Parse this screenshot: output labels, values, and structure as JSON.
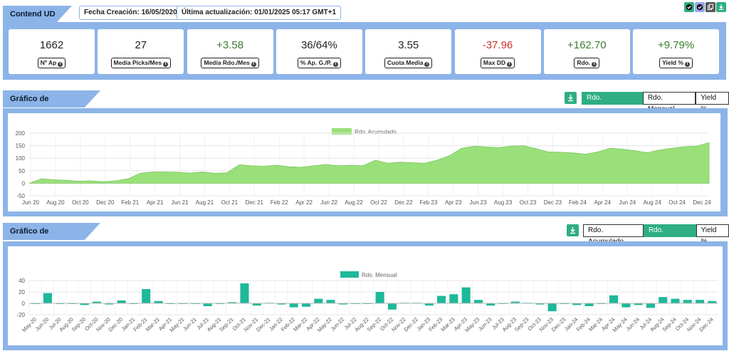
{
  "header": {
    "title": "Contend UD",
    "created": "Fecha Creación: 16/05/2020",
    "updated": "Última actualización: 01/01/2025 05:17 GMT+1"
  },
  "icons": [
    "checkmark-icon",
    "checkmark-icon",
    "copy-icon",
    "download-icon"
  ],
  "colors": {
    "accent": "#2eae82",
    "panel": "#8cb4e8",
    "area": "#99e07a",
    "positive": "#3a7d2c",
    "negative": "#d0312d",
    "bar": "#1fb89a"
  },
  "stats": [
    {
      "value": "1662",
      "label": "Nº Ap",
      "tone": "neutral"
    },
    {
      "value": "27",
      "label": "Media Picks/Mes",
      "tone": "neutral"
    },
    {
      "value": "+3.58",
      "label": "Media Rdo./Mes",
      "tone": "positive"
    },
    {
      "value": "36/64%",
      "label": "% Ap. G./P.",
      "tone": "neutral"
    },
    {
      "value": "3.55",
      "label": "Cuota Media",
      "tone": "neutral"
    },
    {
      "value": "-37.96",
      "label": "Max DD",
      "tone": "negative"
    },
    {
      "value": "+162.70",
      "label": "Rdo.",
      "tone": "positive"
    },
    {
      "value": "+9.79%",
      "label": "Yield %",
      "tone": "positive"
    }
  ],
  "section1": {
    "title": "Gráfico de Resultados",
    "buttons": [
      "Rdo. Acumulado",
      "Rdo. Mensual",
      "Yield %"
    ],
    "active": 0
  },
  "section2": {
    "title": "Gráfico de Resultados",
    "buttons": [
      "Rdo. Acumulado",
      "Rdo. Mensual",
      "Yield %"
    ],
    "active": 1
  },
  "chart_data": [
    {
      "type": "area",
      "legend": "Rdo. Acumulado",
      "ylim": [
        -50,
        200
      ],
      "yticks": [
        -50,
        0,
        50,
        100,
        150,
        200
      ],
      "xlabels": [
        "Jun 20",
        "Aug 20",
        "Oct 20",
        "Dec 20",
        "Feb 21",
        "Apr 21",
        "Jun 21",
        "Aug 21",
        "Oct 21",
        "Dec 21",
        "Feb 22",
        "Apr 22",
        "Jun 22",
        "Aug 22",
        "Oct 22",
        "Dec 22",
        "Feb 23",
        "Apr 23",
        "Jun 23",
        "Aug 23",
        "Oct 23",
        "Dec 23",
        "Feb 24",
        "Apr 24",
        "Jun 24",
        "Aug 24",
        "Oct 24",
        "Dec 24"
      ],
      "x": [
        "2020-05",
        "2020-06",
        "2020-07",
        "2020-08",
        "2020-09",
        "2020-10",
        "2020-11",
        "2020-12",
        "2021-01",
        "2021-02",
        "2021-03",
        "2021-04",
        "2021-05",
        "2021-06",
        "2021-07",
        "2021-08",
        "2021-09",
        "2021-10",
        "2021-11",
        "2021-12",
        "2022-01",
        "2022-02",
        "2022-03",
        "2022-04",
        "2022-05",
        "2022-06",
        "2022-07",
        "2022-08",
        "2022-09",
        "2022-10",
        "2022-11",
        "2022-12",
        "2023-01",
        "2023-02",
        "2023-03",
        "2023-04",
        "2023-05",
        "2023-06",
        "2023-07",
        "2023-08",
        "2023-09",
        "2023-10",
        "2023-11",
        "2023-12",
        "2024-01",
        "2024-02",
        "2024-03",
        "2024-04",
        "2024-05",
        "2024-06",
        "2024-07",
        "2024-08",
        "2024-09",
        "2024-10",
        "2024-11",
        "2024-12"
      ],
      "values": [
        0,
        18,
        14,
        12,
        8,
        10,
        6,
        10,
        18,
        40,
        45,
        45,
        44,
        41,
        45,
        40,
        42,
        74,
        70,
        68,
        72,
        66,
        64,
        70,
        75,
        70,
        72,
        70,
        92,
        80,
        84,
        82,
        80,
        92,
        110,
        140,
        148,
        145,
        142,
        148,
        150,
        138,
        125,
        124,
        121,
        116,
        125,
        140,
        136,
        130,
        122,
        133,
        140,
        146,
        148,
        162
      ]
    },
    {
      "type": "bar",
      "legend": "Rdo. Mensual",
      "ylim": [
        -20,
        40
      ],
      "yticks": [
        -20,
        0,
        20,
        40
      ],
      "categories": [
        "May-20",
        "Jun-20",
        "Jul-20",
        "Aug-20",
        "Sep-20",
        "Oct-20",
        "Nov-20",
        "Dec-20",
        "Jan-21",
        "Feb-21",
        "Mar-21",
        "Apr-21",
        "May-21",
        "Jun-21",
        "Jul-21",
        "Aug-21",
        "Sep-21",
        "Oct-21",
        "Nov-21",
        "Dec-21",
        "Jan-22",
        "Feb-22",
        "Mar-22",
        "Apr-22",
        "May-22",
        "Jun-22",
        "Jul-22",
        "Aug-22",
        "Sep-22",
        "Oct-22",
        "Nov-22",
        "Dec-22",
        "Jan-23",
        "Feb-23",
        "Mar-23",
        "Apr-23",
        "May-23",
        "Jun-23",
        "Jul-23",
        "Aug-23",
        "Sep-23",
        "Oct-23",
        "Nov-23",
        "Dec-23",
        "Jan-24",
        "Feb-24",
        "Mar-24",
        "Apr-24",
        "May-24",
        "Jun-24",
        "Jul-24",
        "Aug-24",
        "Sep-24",
        "Oct-24",
        "Nov-24",
        "Dec-24"
      ],
      "values": [
        -1,
        18,
        -1,
        -1,
        -3,
        3,
        -2,
        5,
        0,
        25,
        4,
        -1,
        0,
        -1,
        -5,
        0,
        2,
        35,
        -4,
        1,
        -2,
        -7,
        -6,
        8,
        6,
        -2,
        0,
        0,
        20,
        -11,
        1,
        1,
        -4,
        13,
        16,
        28,
        6,
        -4,
        -1,
        3,
        1,
        -2,
        -14,
        -1,
        -3,
        -5,
        -1,
        14,
        -7,
        -3,
        -8,
        11,
        8,
        6,
        6,
        4
      ]
    }
  ]
}
